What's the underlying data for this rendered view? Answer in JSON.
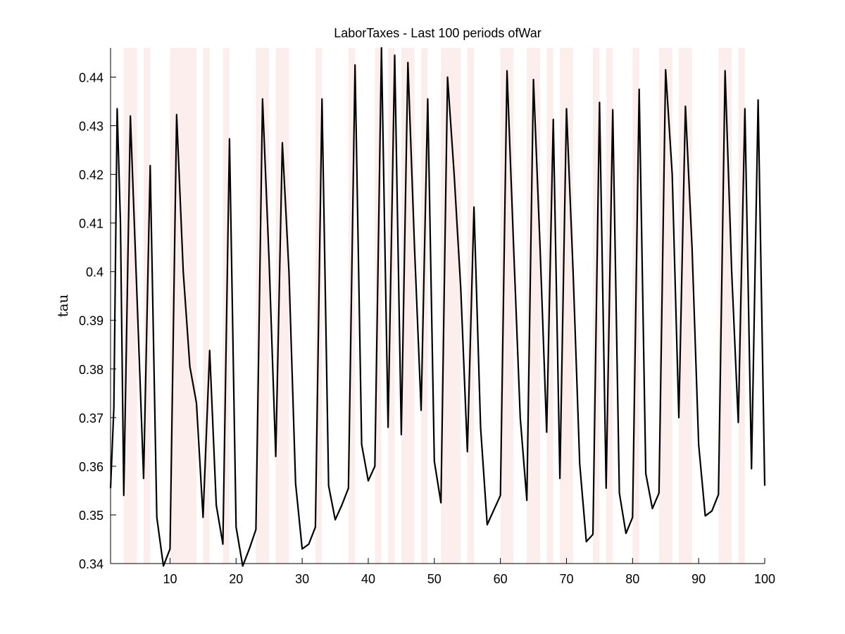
{
  "chart_data": {
    "type": "line",
    "title": "LaborTaxes - Last 100 periods ofWar",
    "xlabel": "",
    "ylabel": "tau",
    "xlim": [
      1,
      100
    ],
    "ylim": [
      0.34,
      0.446
    ],
    "grid": false,
    "legend": "none",
    "x_ticks": [
      10,
      20,
      30,
      40,
      50,
      60,
      70,
      80,
      90,
      100
    ],
    "x_tick_labels": [
      "10",
      "20",
      "30",
      "40",
      "50",
      "60",
      "70",
      "80",
      "90",
      "100"
    ],
    "y_ticks": [
      0.34,
      0.35,
      0.36,
      0.37,
      0.38,
      0.39,
      0.4,
      0.41,
      0.42,
      0.43,
      0.44
    ],
    "y_tick_labels": [
      "0.34",
      "0.35",
      "0.36",
      "0.37",
      "0.38",
      "0.39",
      "0.4",
      "0.41",
      "0.42",
      "0.43",
      "0.44"
    ],
    "line_color": "#000000",
    "shade_color": "#fdeeee",
    "war_periods": [
      [
        3,
        5
      ],
      [
        6,
        7
      ],
      [
        10,
        14
      ],
      [
        15,
        16
      ],
      [
        18,
        19
      ],
      [
        23,
        25
      ],
      [
        26,
        28
      ],
      [
        32,
        33
      ],
      [
        37,
        38
      ],
      [
        41,
        42
      ],
      [
        43,
        44
      ],
      [
        45,
        47
      ],
      [
        48,
        49
      ],
      [
        51,
        54
      ],
      [
        55,
        56
      ],
      [
        60,
        62
      ],
      [
        64,
        66
      ],
      [
        67,
        68
      ],
      [
        69,
        71
      ],
      [
        74,
        75
      ],
      [
        76,
        77
      ],
      [
        80,
        81
      ],
      [
        84,
        86
      ],
      [
        87,
        89
      ],
      [
        93,
        95
      ],
      [
        96,
        97
      ]
    ],
    "series": [
      {
        "x": [
          1,
          1.5,
          2,
          2.5,
          3,
          4,
          5,
          6,
          7,
          8,
          9,
          10,
          11,
          12,
          13,
          14,
          15,
          16,
          17,
          18,
          19,
          20,
          21,
          22,
          23,
          24,
          25,
          26,
          27,
          28,
          29,
          30,
          31,
          32,
          33,
          34,
          35,
          36,
          37,
          38,
          39,
          40,
          41,
          42,
          43,
          44,
          45,
          46,
          47,
          48,
          49,
          50,
          51,
          52,
          53,
          54,
          55,
          56,
          57,
          58,
          59,
          60,
          61,
          62,
          63,
          64,
          65,
          66,
          67,
          68,
          69,
          70,
          71,
          72,
          73,
          74,
          75,
          76,
          77,
          78,
          79,
          80,
          81,
          82,
          83,
          84,
          85,
          86,
          87,
          88,
          89,
          90,
          91,
          92,
          93,
          94,
          95,
          96,
          97,
          98,
          99,
          100
        ],
        "values": [
          0.3555,
          0.372,
          0.4335,
          0.41,
          0.354,
          0.432,
          0.395,
          0.3575,
          0.4218,
          0.3495,
          0.3395,
          0.343,
          0.4323,
          0.4,
          0.3805,
          0.373,
          0.3495,
          0.3838,
          0.352,
          0.344,
          0.4273,
          0.3475,
          0.3395,
          0.343,
          0.347,
          0.4355,
          0.402,
          0.362,
          0.4265,
          0.4,
          0.3565,
          0.343,
          0.344,
          0.3475,
          0.4355,
          0.356,
          0.349,
          0.352,
          0.3555,
          0.4425,
          0.3645,
          0.357,
          0.36,
          0.446,
          0.368,
          0.4445,
          0.3665,
          0.443,
          0.405,
          0.3715,
          0.4355,
          0.361,
          0.3525,
          0.44,
          0.42,
          0.3965,
          0.363,
          0.4133,
          0.368,
          0.348,
          0.351,
          0.354,
          0.4413,
          0.405,
          0.37,
          0.353,
          0.4395,
          0.405,
          0.367,
          0.4313,
          0.3575,
          0.4335,
          0.4,
          0.3605,
          0.3445,
          0.346,
          0.4348,
          0.3555,
          0.4333,
          0.3545,
          0.3462,
          0.3495,
          0.4375,
          0.3585,
          0.3513,
          0.3545,
          0.4415,
          0.42,
          0.37,
          0.434,
          0.405,
          0.3645,
          0.3498,
          0.3508,
          0.3542,
          0.4413,
          0.4,
          0.369,
          0.4335,
          0.3595,
          0.4353,
          0.356
        ]
      }
    ]
  }
}
